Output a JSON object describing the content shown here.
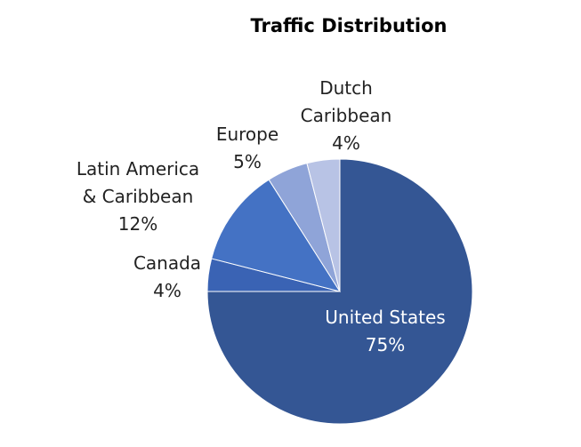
{
  "chart_data": {
    "type": "pie",
    "title": "Traffic Distribution",
    "slices": [
      {
        "label": [
          "United States",
          "75%"
        ],
        "value": 75,
        "color": "#345694"
      },
      {
        "label": [
          "Canada",
          "4%"
        ],
        "value": 4,
        "color": "#3a63b4"
      },
      {
        "label": [
          "Latin America",
          "& Caribbean",
          "12%"
        ],
        "value": 12,
        "color": "#4472c4"
      },
      {
        "label": [
          "Europe",
          "5%"
        ],
        "value": 5,
        "color": "#8fa4d8"
      },
      {
        "label": [
          "Dutch",
          "Caribbean",
          "4%"
        ],
        "value": 4,
        "color": "#b8c3e5"
      }
    ]
  }
}
